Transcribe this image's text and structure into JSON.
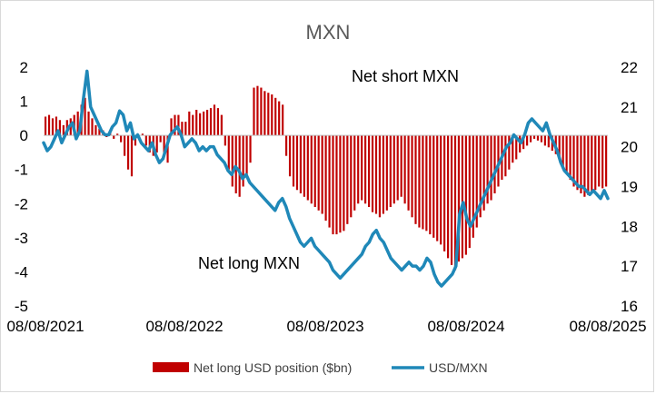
{
  "chart_data": {
    "type": "bar+line",
    "title": "MXN",
    "x_tick_labels": [
      "08/08/2021",
      "08/08/2022",
      "08/08/2023",
      "08/08/2024",
      "08/08/2025"
    ],
    "y_left": {
      "range": [
        -5,
        2
      ],
      "ticks": [
        "2",
        "1",
        "0",
        "-1",
        "-2",
        "-3",
        "-4",
        "-5"
      ]
    },
    "y_right": {
      "range": [
        16,
        22
      ],
      "ticks": [
        "22",
        "21",
        "20",
        "19",
        "18",
        "17",
        "16"
      ]
    },
    "annotations": {
      "top": "Net short MXN",
      "bottom": "Net long MXN"
    },
    "legend": {
      "position": "bottom",
      "bar_label": "Net long USD position ($bn)",
      "line_label": "USD/MXN"
    },
    "colors": {
      "bars": "#c00000",
      "line": "#1f88b8",
      "title": "#595959"
    },
    "series": [
      {
        "name": "Net long USD position ($bn)",
        "kind": "bar",
        "axis": "left",
        "values": [
          0.55,
          0.6,
          0.5,
          0.55,
          0.45,
          0.3,
          0.45,
          0.5,
          0.6,
          0.7,
          0.9,
          1.1,
          0.7,
          0.5,
          0.3,
          0.2,
          0.15,
          -0.05,
          0.1,
          -0.1,
          0.05,
          -0.2,
          -0.6,
          -1.0,
          -1.2,
          -0.3,
          -0.1,
          0.05,
          -0.3,
          -0.5,
          -0.6,
          -0.5,
          -0.2,
          -0.6,
          -0.8,
          0.5,
          0.6,
          0.6,
          0.4,
          0.4,
          0.7,
          0.6,
          0.75,
          0.65,
          0.7,
          0.75,
          0.8,
          0.9,
          0.8,
          0.6,
          -0.3,
          -1.0,
          -1.5,
          -1.7,
          -1.8,
          -1.5,
          -1.2,
          -0.8,
          1.4,
          1.45,
          1.4,
          1.3,
          1.25,
          1.2,
          1.1,
          1.0,
          0.9,
          -0.6,
          -1.2,
          -1.5,
          -1.6,
          -1.7,
          -1.8,
          -1.9,
          -2.0,
          -2.1,
          -2.2,
          -2.3,
          -2.5,
          -2.7,
          -2.9,
          -2.9,
          -2.85,
          -2.8,
          -2.6,
          -2.4,
          -2.2,
          -2.0,
          -1.9,
          -2.0,
          -2.1,
          -2.25,
          -2.3,
          -2.4,
          -2.3,
          -2.2,
          -2.1,
          -2.0,
          -1.9,
          -1.8,
          -2.0,
          -2.2,
          -2.4,
          -2.6,
          -2.7,
          -2.75,
          -2.8,
          -2.9,
          -3.0,
          -3.1,
          -3.2,
          -3.4,
          -3.6,
          -3.8,
          -3.95,
          -3.7,
          -3.6,
          -3.5,
          -3.3,
          -3.0,
          -2.7,
          -2.4,
          -2.2,
          -2.0,
          -1.9,
          -1.7,
          -1.5,
          -1.3,
          -1.2,
          -1.0,
          -0.8,
          -0.7,
          -0.5,
          -0.4,
          -0.3,
          -0.2,
          -0.1,
          -0.15,
          -0.2,
          -0.3,
          -0.35,
          -0.45,
          -0.55,
          -0.7,
          -0.9,
          -1.1,
          -1.3,
          -1.5,
          -1.6,
          -1.7,
          -1.8,
          -1.75,
          -1.7,
          -1.6,
          -1.5,
          -1.55,
          -1.5
        ]
      },
      {
        "name": "USD/MXN",
        "kind": "line",
        "axis": "right",
        "values": [
          20.1,
          19.9,
          20.0,
          20.2,
          20.4,
          20.1,
          20.3,
          20.5,
          20.6,
          20.2,
          20.4,
          21.2,
          21.9,
          21.0,
          20.8,
          20.6,
          20.4,
          20.3,
          20.3,
          20.5,
          20.6,
          20.9,
          20.8,
          20.4,
          20.6,
          20.2,
          20.3,
          20.1,
          20.0,
          19.9,
          20.1,
          19.8,
          19.6,
          19.7,
          20.0,
          20.3,
          20.4,
          20.5,
          20.3,
          20.0,
          20.1,
          20.2,
          20.1,
          19.9,
          20.0,
          19.9,
          20.0,
          20.0,
          19.8,
          19.7,
          19.6,
          19.4,
          19.3,
          19.5,
          19.4,
          19.2,
          19.3,
          19.1,
          19.0,
          18.9,
          18.8,
          18.7,
          18.6,
          18.5,
          18.4,
          18.6,
          18.7,
          18.5,
          18.2,
          18.0,
          17.8,
          17.6,
          17.5,
          17.6,
          17.7,
          17.5,
          17.4,
          17.3,
          17.2,
          17.1,
          16.9,
          16.8,
          16.7,
          16.8,
          16.9,
          17.0,
          17.1,
          17.2,
          17.3,
          17.5,
          17.6,
          17.8,
          17.9,
          17.7,
          17.6,
          17.4,
          17.2,
          17.1,
          17.0,
          16.9,
          17.0,
          17.1,
          17.0,
          17.0,
          16.9,
          17.0,
          17.2,
          17.1,
          16.8,
          16.6,
          16.5,
          16.6,
          16.7,
          16.8,
          17.0,
          18.3,
          18.6,
          18.2,
          18.0,
          18.2,
          18.4,
          18.6,
          18.8,
          19.0,
          19.2,
          19.4,
          19.6,
          19.8,
          20.0,
          20.1,
          20.3,
          20.2,
          20.1,
          20.3,
          20.6,
          20.7,
          20.6,
          20.5,
          20.4,
          20.6,
          20.3,
          20.1,
          19.9,
          19.6,
          19.4,
          19.3,
          19.2,
          19.1,
          19.0,
          19.0,
          18.9,
          18.8,
          18.9,
          18.8,
          18.7,
          18.9,
          18.7
        ]
      }
    ]
  }
}
